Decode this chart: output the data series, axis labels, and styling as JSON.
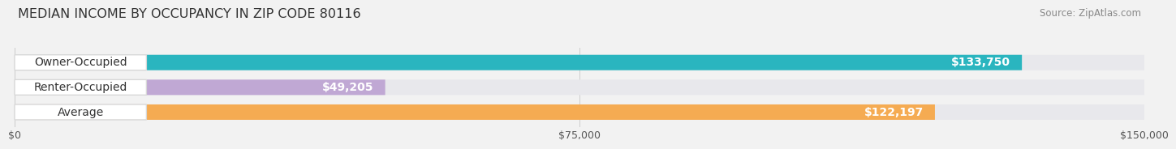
{
  "title": "MEDIAN INCOME BY OCCUPANCY IN ZIP CODE 80116",
  "source": "Source: ZipAtlas.com",
  "categories": [
    "Owner-Occupied",
    "Renter-Occupied",
    "Average"
  ],
  "values": [
    133750,
    49205,
    122197
  ],
  "labels": [
    "$133,750",
    "$49,205",
    "$122,197"
  ],
  "bar_colors": [
    "#2ab5bf",
    "#c0a8d4",
    "#f5ab52"
  ],
  "bar_bg_color": "#e8e8ec",
  "xlim": [
    0,
    150000
  ],
  "xticks": [
    0,
    75000,
    150000
  ],
  "xtick_labels": [
    "$0",
    "$75,000",
    "$150,000"
  ],
  "background_color": "#f2f2f2",
  "title_fontsize": 11.5,
  "source_fontsize": 8.5,
  "cat_fontsize": 10,
  "val_fontsize": 10,
  "tick_fontsize": 9,
  "bar_height": 0.62,
  "rounding_size": 0.3
}
